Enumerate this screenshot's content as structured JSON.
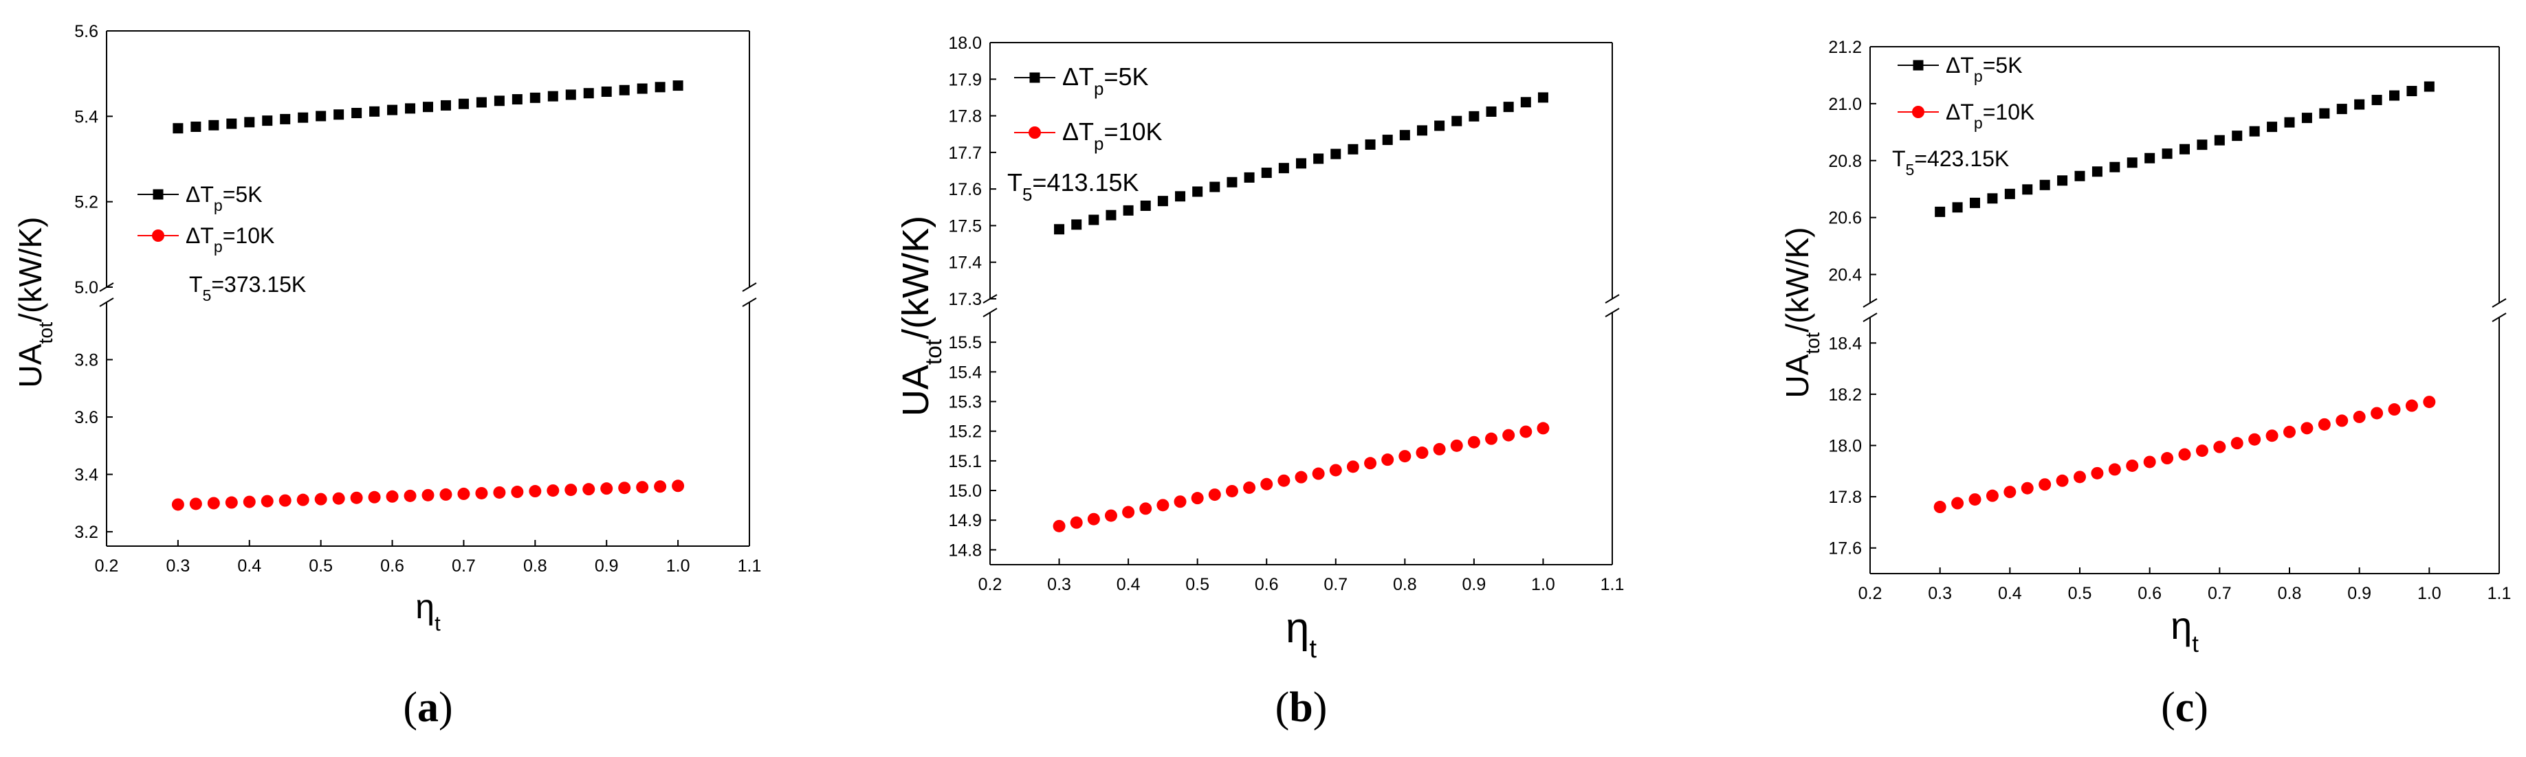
{
  "chart_data": [
    {
      "type": "scatter",
      "panel_label": "(a)",
      "panel_letter": "a",
      "xlabel": "η",
      "xlabel_sub": "t",
      "ylabel": "UA",
      "ylabel_sub": "tot",
      "ylabel_rest": "/(kW/K)",
      "xlim": [
        0.2,
        1.1
      ],
      "xticks": [
        "0.2",
        "0.3",
        "0.4",
        "0.5",
        "0.6",
        "0.7",
        "0.8",
        "0.9",
        "1.0",
        "1.1"
      ],
      "y_upper": {
        "lim": [
          5.0,
          5.6
        ],
        "ticks": [
          "5.0",
          "5.2",
          "5.4",
          "5.6"
        ]
      },
      "y_lower": {
        "lim": [
          3.15,
          4.0
        ],
        "ticks": [
          "3.2",
          "3.4",
          "3.6",
          "3.8"
        ]
      },
      "legend": [
        {
          "label_pre": "ΔT",
          "label_sub": "p",
          "label_post": "=5K",
          "color": "#000000",
          "marker": "square"
        },
        {
          "label_pre": "ΔT",
          "label_sub": "p",
          "label_post": "=10K",
          "color": "#ff0000",
          "marker": "circle"
        }
      ],
      "annotation": {
        "pre": "T",
        "sub": "5",
        "post": "=373.15K"
      },
      "series": [
        {
          "name": "ΔTp=5K",
          "color": "#000000",
          "marker": "square",
          "x_start": 0.3,
          "x_end": 1.0,
          "count": 29,
          "y_start": 5.372,
          "y_end": 5.472
        },
        {
          "name": "ΔTp=10K",
          "color": "#ff0000",
          "marker": "circle",
          "x_start": 0.3,
          "x_end": 1.0,
          "count": 29,
          "y_start": 3.295,
          "y_end": 3.36
        }
      ]
    },
    {
      "type": "scatter",
      "panel_label": "(b)",
      "panel_letter": "b",
      "xlabel": "η",
      "xlabel_sub": "t",
      "ylabel": "UA",
      "ylabel_sub": "tot",
      "ylabel_rest": "/(kW/K)",
      "xlim": [
        0.2,
        1.1
      ],
      "xticks": [
        "0.2",
        "0.3",
        "0.4",
        "0.5",
        "0.6",
        "0.7",
        "0.8",
        "0.9",
        "1.0",
        "1.1"
      ],
      "y_upper": {
        "lim": [
          17.3,
          18.0
        ],
        "ticks": [
          "17.3",
          "17.4",
          "17.5",
          "17.6",
          "17.7",
          "17.8",
          "17.9",
          "18.0"
        ]
      },
      "y_lower": {
        "lim": [
          14.75,
          15.6
        ],
        "ticks": [
          "14.8",
          "14.9",
          "15.0",
          "15.1",
          "15.2",
          "15.3",
          "15.4",
          "15.5"
        ]
      },
      "legend": [
        {
          "label_pre": "ΔT",
          "label_sub": "p",
          "label_post": "=5K",
          "color": "#000000",
          "marker": "square"
        },
        {
          "label_pre": "ΔT",
          "label_sub": "p",
          "label_post": "=10K",
          "color": "#ff0000",
          "marker": "circle"
        }
      ],
      "annotation": {
        "pre": "T",
        "sub": "5",
        "post": "=413.15K"
      },
      "series": [
        {
          "name": "ΔTp=5K",
          "color": "#000000",
          "marker": "square",
          "x_start": 0.3,
          "x_end": 1.0,
          "count": 29,
          "y_start": 17.49,
          "y_end": 17.85
        },
        {
          "name": "ΔTp=10K",
          "color": "#ff0000",
          "marker": "circle",
          "x_start": 0.3,
          "x_end": 1.0,
          "count": 29,
          "y_start": 14.88,
          "y_end": 15.21
        }
      ]
    },
    {
      "type": "scatter",
      "panel_label": "(c)",
      "panel_letter": "c",
      "xlabel": "η",
      "xlabel_sub": "t",
      "ylabel": "UA",
      "ylabel_sub": "tot",
      "ylabel_rest": "/(kW/K)",
      "xlim": [
        0.2,
        1.1
      ],
      "xticks": [
        "0.2",
        "0.3",
        "0.4",
        "0.5",
        "0.6",
        "0.7",
        "0.8",
        "0.9",
        "1.0",
        "1.1"
      ],
      "y_upper": {
        "lim": [
          20.3,
          21.2
        ],
        "ticks": [
          "20.4",
          "20.6",
          "20.8",
          "21.0",
          "21.2"
        ]
      },
      "y_lower": {
        "lim": [
          17.5,
          18.5
        ],
        "ticks": [
          "17.6",
          "17.8",
          "18.0",
          "18.2",
          "18.4"
        ]
      },
      "legend": [
        {
          "label_pre": "ΔT",
          "label_sub": "p",
          "label_post": "=5K",
          "color": "#000000",
          "marker": "square"
        },
        {
          "label_pre": "ΔT",
          "label_sub": "p",
          "label_post": "=10K",
          "color": "#ff0000",
          "marker": "circle"
        }
      ],
      "annotation": {
        "pre": "T",
        "sub": "5",
        "post": "=423.15K"
      },
      "series": [
        {
          "name": "ΔTp=5K",
          "color": "#000000",
          "marker": "square",
          "x_start": 0.3,
          "x_end": 1.0,
          "count": 29,
          "y_start": 20.62,
          "y_end": 21.06
        },
        {
          "name": "ΔTp=10K",
          "color": "#ff0000",
          "marker": "circle",
          "x_start": 0.3,
          "x_end": 1.0,
          "count": 29,
          "y_start": 17.76,
          "y_end": 18.17
        }
      ]
    }
  ]
}
